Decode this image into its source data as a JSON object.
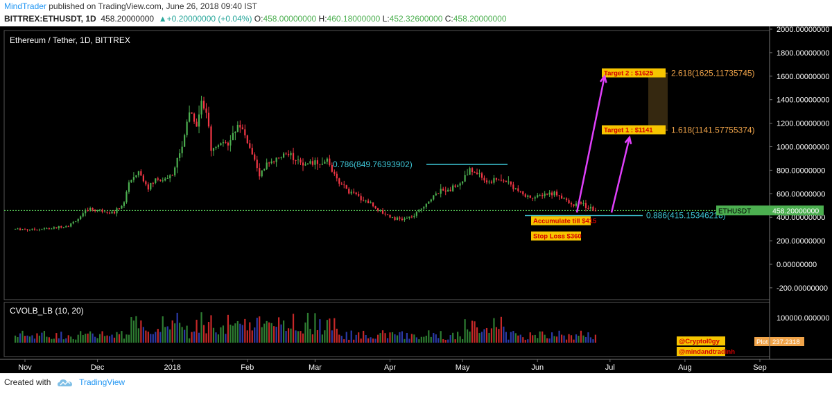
{
  "header": {
    "author": "MindTrader",
    "published": " published on TradingView.com, June 26, 2018 09:40 IST",
    "symbol": "BITTREX:ETHUSDT, 1D",
    "last": "458.20000000",
    "change": "+0.20000000 (+0.04%)",
    "o_label": "O:",
    "o_value": "458.00000000",
    "h_label": "H:",
    "h_value": "460.18000000",
    "l_label": "L:",
    "l_value": "452.32600000",
    "c_label": "C:",
    "c_value": "458.20000000"
  },
  "colors": {
    "background": "#000000",
    "up": "#4caf50",
    "down": "#f23645",
    "fib": "#3ec7d8",
    "arrow": "#e040fb",
    "label_bg": "#f6c500",
    "label_text": "#d40000",
    "target_text": "#f0a44a",
    "price_tag": "#4caf50",
    "plot_tag": "#f0a44a",
    "dotted_line": "#5bd35b"
  },
  "chart_data": {
    "type": "candlestick",
    "title": "Ethereum / Tether, 1D, BITTREX",
    "y_ticks": [
      "2000.00000000",
      "1800.00000000",
      "1600.00000000",
      "1400.00000000",
      "1200.00000000",
      "1000.00000000",
      "800.00000000",
      "600.00000000",
      "400.00000000",
      "200.00000000",
      "0.00000000",
      "-200.00000000"
    ],
    "y_tick_values": [
      2000,
      1800,
      1600,
      1400,
      1200,
      1000,
      800,
      600,
      400,
      200,
      0,
      -200
    ],
    "x_ticks": [
      "Nov",
      "Dec",
      "2018",
      "Feb",
      "Mar",
      "Apr",
      "May",
      "Jun",
      "Jul",
      "Aug",
      "Sep"
    ],
    "price_tag": {
      "symbol": "ETHUSDT",
      "value": "458.20000000",
      "y": 458.2
    },
    "fib_levels": [
      {
        "label": "0.786(849.76393902)",
        "value": 849.76
      },
      {
        "label": "0.886(415.15346218)",
        "value": 415.15
      },
      {
        "label": "1.618(1141.57755374)",
        "value": 1141.58
      },
      {
        "label": "2.618(1625.11735745)",
        "value": 1625.12
      }
    ],
    "annotations": [
      {
        "text": "Target 2 : $1625",
        "value": 1625
      },
      {
        "text": "Target 1 : $1141",
        "value": 1141
      },
      {
        "text": "Accumulate till $415",
        "value": 415
      },
      {
        "text": "Stop Loss $360",
        "value": 360
      }
    ],
    "price_path": [
      [
        "2017-10-28",
        300
      ],
      [
        "2017-11-05",
        297
      ],
      [
        "2017-11-12",
        305
      ],
      [
        "2017-11-19",
        330
      ],
      [
        "2017-11-24",
        400
      ],
      [
        "2017-11-27",
        470
      ],
      [
        "2017-12-02",
        460
      ],
      [
        "2017-12-08",
        440
      ],
      [
        "2017-12-12",
        520
      ],
      [
        "2017-12-14",
        700
      ],
      [
        "2017-12-18",
        790
      ],
      [
        "2017-12-22",
        650
      ],
      [
        "2017-12-25",
        720
      ],
      [
        "2017-12-29",
        720
      ],
      [
        "2018-01-01",
        760
      ],
      [
        "2018-01-04",
        950
      ],
      [
        "2018-01-06",
        1100
      ],
      [
        "2018-01-08",
        1300
      ],
      [
        "2018-01-11",
        1200
      ],
      [
        "2018-01-13",
        1390
      ],
      [
        "2018-01-15",
        1300
      ],
      [
        "2018-01-17",
        960
      ],
      [
        "2018-01-21",
        1050
      ],
      [
        "2018-01-24",
        1000
      ],
      [
        "2018-01-28",
        1200
      ],
      [
        "2018-01-31",
        1100
      ],
      [
        "2018-02-03",
        950
      ],
      [
        "2018-02-06",
        760
      ],
      [
        "2018-02-09",
        850
      ],
      [
        "2018-02-13",
        880
      ],
      [
        "2018-02-17",
        950
      ],
      [
        "2018-02-21",
        900
      ],
      [
        "2018-02-25",
        860
      ],
      [
        "2018-03-02",
        870
      ],
      [
        "2018-03-06",
        880
      ],
      [
        "2018-03-10",
        720
      ],
      [
        "2018-03-15",
        620
      ],
      [
        "2018-03-20",
        560
      ],
      [
        "2018-03-24",
        520
      ],
      [
        "2018-03-28",
        450
      ],
      [
        "2018-04-03",
        390
      ],
      [
        "2018-04-06",
        380
      ],
      [
        "2018-04-11",
        410
      ],
      [
        "2018-04-15",
        500
      ],
      [
        "2018-04-19",
        580
      ],
      [
        "2018-04-22",
        620
      ],
      [
        "2018-04-26",
        650
      ],
      [
        "2018-04-30",
        680
      ],
      [
        "2018-05-04",
        800
      ],
      [
        "2018-05-07",
        780
      ],
      [
        "2018-05-11",
        700
      ],
      [
        "2018-05-15",
        720
      ],
      [
        "2018-05-19",
        710
      ],
      [
        "2018-05-23",
        640
      ],
      [
        "2018-05-27",
        580
      ],
      [
        "2018-05-31",
        570
      ],
      [
        "2018-06-04",
        600
      ],
      [
        "2018-06-08",
        610
      ],
      [
        "2018-06-12",
        560
      ],
      [
        "2018-06-15",
        500
      ],
      [
        "2018-06-19",
        520
      ],
      [
        "2018-06-22",
        480
      ],
      [
        "2018-06-25",
        458
      ]
    ],
    "volume_indicator": {
      "name": "CVOLB_LB (10, 20)",
      "y_ticks": [
        "100000.000000"
      ],
      "plot_label": "Plot",
      "plot_value": "237.2318"
    }
  },
  "watermarks": [
    "@Cryptol0gy",
    "@mindandtradinh"
  ],
  "footer": {
    "created_with": "Created with",
    "brand": "TradingView"
  }
}
